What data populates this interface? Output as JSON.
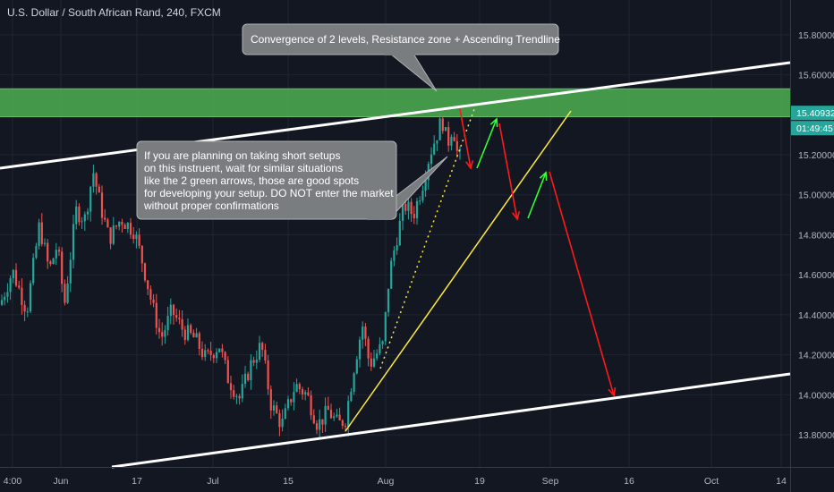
{
  "title": "U.S. Dollar / South African Rand, 240, FXCM",
  "chart_data": {
    "type": "candlestick",
    "ylim": [
      13.72,
      15.92
    ],
    "y_ticks": [
      "15.80000",
      "15.60000",
      "15.40000",
      "15.20000",
      "15.00000",
      "14.80000",
      "14.60000",
      "14.40000",
      "14.20000",
      "14.00000",
      "13.80000"
    ],
    "x_ticks": [
      "4:00",
      "Jun",
      "17",
      "Jul",
      "15",
      "Aug",
      "19",
      "Sep",
      "16",
      "Oct",
      "14"
    ],
    "price_label": {
      "value": "15.40932",
      "countdown": "01:49:45"
    },
    "resistance_zone": {
      "low": 15.39,
      "high": 15.53
    },
    "annotations": [
      {
        "text": "Convergence of 2 levels, Resistance zone + Ascending Trendline"
      },
      {
        "lines": [
          "If you are planning on taking short setups",
          "on this instruent, wait for similar situations",
          "like the 2 green arrows, those are good spots",
          "for developing your setup. DO NOT enter the market",
          "without proper confirmations"
        ]
      }
    ]
  },
  "colors": {
    "background": "#131722",
    "grid": "#1f2433",
    "bull": "#26a69a",
    "bear": "#ef5350",
    "zone": "#4caf50",
    "trendline": "#ffffff",
    "yellow": "#ffeb3b",
    "arrow_red": "#ff1a1a",
    "arrow_green": "#33ff33",
    "price_tag": "#26a69a"
  }
}
